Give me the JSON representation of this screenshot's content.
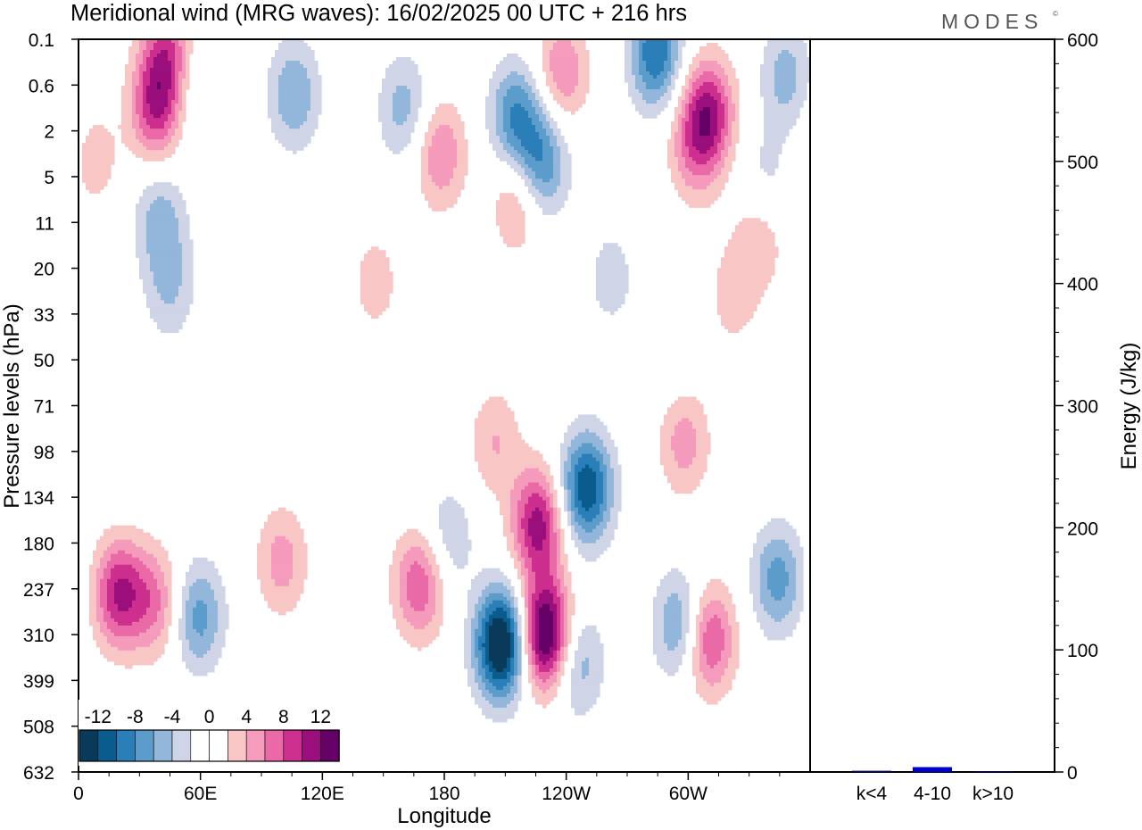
{
  "chart_data": [
    {
      "type": "heatmap",
      "title": "Meridional wind (MRG waves):  16/02/2025  00 UTC  + 216 hrs",
      "xlabel": "Longitude",
      "ylabel": "Pressure levels (hPa)",
      "x_ticks": [
        "0",
        "60E",
        "120E",
        "180",
        "120W",
        "60W"
      ],
      "x_tick_degrees": [
        0,
        60,
        120,
        180,
        240,
        300
      ],
      "xlim": [
        0,
        360
      ],
      "y_ticks": [
        "0.1",
        "0.6",
        "2",
        "5",
        "11",
        "20",
        "33",
        "50",
        "71",
        "98",
        "134",
        "180",
        "237",
        "310",
        "399",
        "508",
        "632"
      ],
      "colorbar_labels": [
        "-12",
        "-8",
        "-4",
        "0",
        "4",
        "8",
        "12"
      ],
      "colorbar_colors": [
        "#0a3a5a",
        "#0b5c8e",
        "#2a7fb8",
        "#5b9ccb",
        "#93b7da",
        "#cfd4e7",
        "#ffffff",
        "#ffffff",
        "#f9c6c6",
        "#f59bbb",
        "#e96aa6",
        "#cc2f8e",
        "#9b0f7d",
        "#650066"
      ],
      "levels": [
        -14,
        -12,
        -10,
        -8,
        -6,
        -4,
        -2,
        0,
        2,
        4,
        6,
        8,
        10,
        12,
        14
      ],
      "cells": [
        {
          "lon": 208,
          "lev": 13.2,
          "v": -16
        },
        {
          "lon": 230,
          "lev": 13.0,
          "v": 16
        },
        {
          "lon": 250,
          "lev": 9.8,
          "v": -12
        },
        {
          "lon": 226,
          "lev": 10.6,
          "v": 11
        },
        {
          "lon": 245,
          "lev": 13.6,
          "v": -6
        },
        {
          "lon": 20,
          "lev": 12.1,
          "v": 10
        },
        {
          "lon": 38,
          "lev": 12.3,
          "v": 6
        },
        {
          "lon": 59,
          "lev": 12.6,
          "v": -7
        },
        {
          "lon": 100,
          "lev": 11.4,
          "v": 5
        },
        {
          "lon": 168,
          "lev": 11.9,
          "v": 8
        },
        {
          "lon": 182,
          "lev": 10.9,
          "v": -4
        },
        {
          "lon": 296,
          "lev": 12.8,
          "v": -7
        },
        {
          "lon": 310,
          "lev": 13.1,
          "v": 9
        },
        {
          "lon": 344,
          "lev": 11.8,
          "v": -7
        },
        {
          "lon": 298,
          "lev": 8.8,
          "v": 5
        },
        {
          "lon": 205,
          "lev": 8.8,
          "v": 4
        },
        {
          "lon": 44,
          "lev": 0.3,
          "v": 8
        },
        {
          "lon": 38,
          "lev": 1.5,
          "v": 9
        },
        {
          "lon": 57,
          "lev": 1.0,
          "v": -3
        },
        {
          "lon": 106,
          "lev": 1.2,
          "v": -6
        },
        {
          "lon": 160,
          "lev": 1.5,
          "v": -5
        },
        {
          "lon": 215,
          "lev": 1.7,
          "v": -8
        },
        {
          "lon": 228,
          "lev": 2.7,
          "v": -8
        },
        {
          "lon": 178,
          "lev": 2.5,
          "v": 6
        },
        {
          "lon": 216,
          "lev": 3.5,
          "v": 5
        },
        {
          "lon": 238,
          "lev": 0.7,
          "v": 6
        },
        {
          "lon": 284,
          "lev": 0.3,
          "v": -10
        },
        {
          "lon": 310,
          "lev": 1.6,
          "v": 10
        },
        {
          "lon": 303,
          "lev": 2.4,
          "v": 5
        },
        {
          "lon": 338,
          "lev": 3.1,
          "v": -3
        },
        {
          "lon": 348,
          "lev": 0.8,
          "v": -5
        },
        {
          "lon": 8,
          "lev": 2.6,
          "v": 3
        },
        {
          "lon": 40,
          "lev": 3.9,
          "v": -5
        },
        {
          "lon": 45,
          "lev": 5.4,
          "v": -4
        },
        {
          "lon": 335,
          "lev": 4.3,
          "v": 4
        },
        {
          "lon": 322,
          "lev": 5.6,
          "v": 3
        },
        {
          "lon": 262,
          "lev": 5.2,
          "v": -3
        },
        {
          "lon": 146,
          "lev": 5.3,
          "v": 3
        },
        {
          "lon": 290,
          "lev": 6.5,
          "v": -2
        },
        {
          "lon": 24,
          "lev": 8.6,
          "v": -2
        }
      ],
      "energy_panel": {
        "ylabel": "Energy (J/kg)",
        "ylim": [
          0,
          600
        ],
        "y_ticks": [
          0,
          100,
          200,
          300,
          400,
          500,
          600
        ],
        "categories": [
          "k<4",
          "4-10",
          "k>10"
        ],
        "values": [
          1,
          4,
          0
        ],
        "colors": [
          "#000080",
          "#0000cc",
          "#000080"
        ]
      }
    }
  ],
  "logo": "MODES"
}
